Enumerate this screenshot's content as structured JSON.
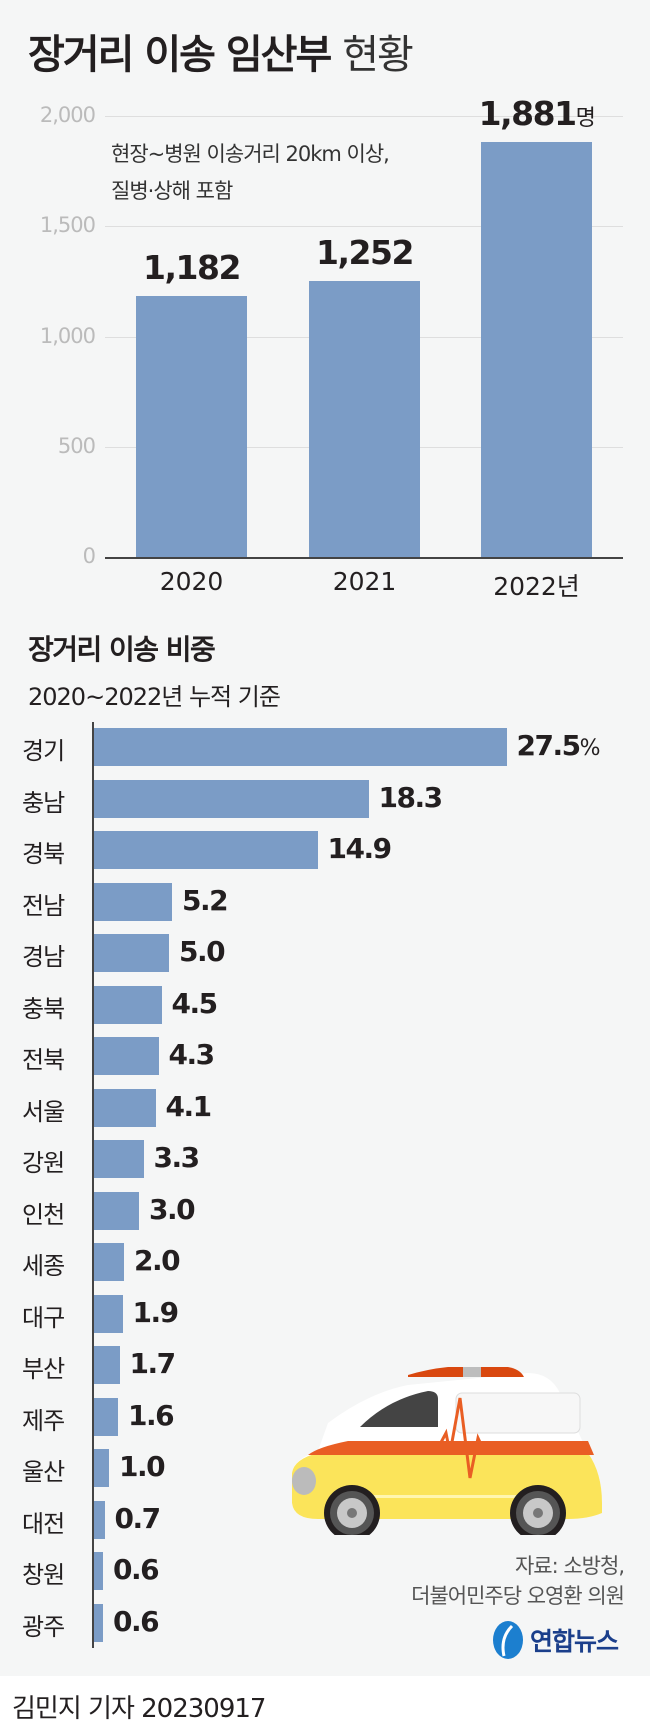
{
  "title": {
    "bold": "장거리 이송 임산부",
    "light": "현황"
  },
  "chart_data": [
    {
      "type": "bar",
      "orientation": "vertical",
      "categories": [
        "2020",
        "2021",
        "2022년"
      ],
      "values": [
        1182,
        1252,
        1881
      ],
      "value_labels": [
        "1,182",
        "1,252",
        "1,881"
      ],
      "unit": "명",
      "ylim": [
        0,
        2000
      ],
      "yticks": [
        "2,000",
        "1,500",
        "1,000",
        "500",
        "0"
      ],
      "ytick_values": [
        2000,
        1500,
        1000,
        500,
        0
      ],
      "grid": true,
      "annotation": [
        "현장~병원 이송거리 20km 이상,",
        "질병·상해 포함"
      ],
      "color": "#7b9cc6"
    },
    {
      "type": "bar",
      "orientation": "horizontal",
      "title": "장거리 이송 비중",
      "subtitle": "2020~2022년 누적 기준",
      "categories": [
        "경기",
        "충남",
        "경북",
        "전남",
        "경남",
        "충북",
        "전북",
        "서울",
        "강원",
        "인천",
        "세종",
        "대구",
        "부산",
        "제주",
        "울산",
        "대전",
        "창원",
        "광주"
      ],
      "values": [
        27.5,
        18.3,
        14.9,
        5.2,
        5.0,
        4.5,
        4.3,
        4.1,
        3.3,
        3.0,
        2.0,
        1.9,
        1.7,
        1.6,
        1.0,
        0.7,
        0.6,
        0.6
      ],
      "value_labels": [
        "27.5",
        "18.3",
        "14.9",
        "5.2",
        "5.0",
        "4.5",
        "4.3",
        "4.1",
        "3.3",
        "3.0",
        "2.0",
        "1.9",
        "1.7",
        "1.6",
        "1.0",
        "0.7",
        "0.6",
        "0.6"
      ],
      "unit": "%",
      "color": "#7b9cc6"
    }
  ],
  "source": [
    "자료: 소방청,",
    "더불어민주당 오영환 의원"
  ],
  "logo": "연합뉴스",
  "footer": "김민지 기자  20230917",
  "icons": [
    "ambulance-illustration",
    "yonhap-logo"
  ]
}
